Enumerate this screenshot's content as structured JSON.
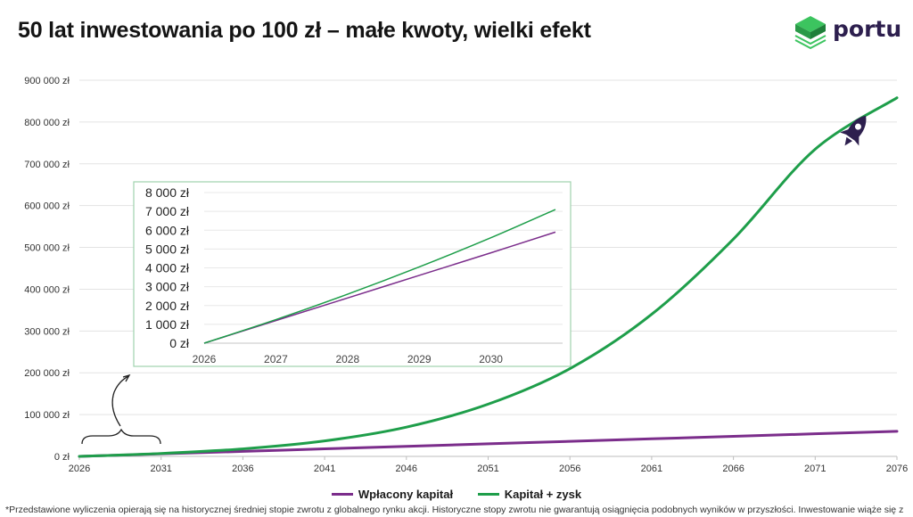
{
  "title": "50 lat inwestowania po 100 zł – małe kwoty, wielki efekt",
  "logo": {
    "text": "portu",
    "icon": "green-cube-stack-icon",
    "color": "#2eab4f"
  },
  "footnote": "*Przedstawione wyliczenia opierają się na historycznej średniej stopie zwrotu z globalnego rynku akcji. Historyczne stopy zwrotu nie gwarantują osiągnięcia podobnych wyników w przyszłości. Inwestowanie wiąże się z",
  "legend": [
    {
      "label": "Wpłacony kapitał",
      "color": "#7b2d8b"
    },
    {
      "label": "Kapitał + zysk",
      "color": "#1e9e4a"
    }
  ],
  "chart_data": [
    {
      "type": "line",
      "title": "",
      "x": [
        2026,
        2031,
        2036,
        2041,
        2046,
        2051,
        2056,
        2061,
        2066,
        2071,
        2076
      ],
      "xticks": [
        "2026",
        "2031",
        "2036",
        "2041",
        "2046",
        "2051",
        "2056",
        "2061",
        "2066",
        "2071",
        "2076"
      ],
      "xlim": [
        2026,
        2076
      ],
      "ylim": [
        0,
        900000
      ],
      "yticks": [
        "0 zł",
        "100 000 zł",
        "200 000 zł",
        "300 000 zł",
        "400 000 zł",
        "500 000 zł",
        "600 000 zł",
        "700 000 zł",
        "800 000 zł",
        "900 000 zł"
      ],
      "grid": true,
      "legend_position": "bottom",
      "series": [
        {
          "name": "Wpłacony kapitał",
          "color": "#7b2d8b",
          "values": [
            0,
            6000,
            12000,
            18000,
            24000,
            30000,
            36000,
            42000,
            48000,
            54000,
            60000
          ]
        },
        {
          "name": "Kapitał + zysk",
          "color": "#1e9e4a",
          "values": [
            0,
            7000,
            18000,
            37000,
            70000,
            125000,
            210000,
            340000,
            520000,
            735000,
            858000
          ]
        }
      ]
    },
    {
      "type": "line",
      "title": "",
      "x": [
        2026,
        2027,
        2028,
        2029,
        2030,
        2030.9
      ],
      "xticks": [
        "2026",
        "2027",
        "2028",
        "2029",
        "2030"
      ],
      "xlim": [
        2026,
        2031
      ],
      "ylim": [
        0,
        8000
      ],
      "yticks": [
        "0 zł",
        "1 000 zł",
        "2 000 zł",
        "3 000 zł",
        "4 000 zł",
        "5 000 zł",
        "6 000 zł",
        "7 000 zł",
        "8 000 zł"
      ],
      "grid": true,
      "series": [
        {
          "name": "Wpłacony kapitał",
          "color": "#7b2d8b",
          "values": [
            0,
            1200,
            2400,
            3600,
            4800,
            5900
          ]
        },
        {
          "name": "Kapitał + zysk",
          "color": "#1e9e4a",
          "values": [
            0,
            1250,
            2600,
            4050,
            5600,
            7100
          ]
        }
      ]
    }
  ]
}
